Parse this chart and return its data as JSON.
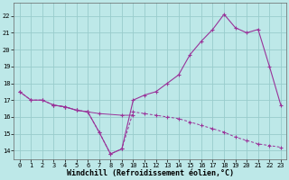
{
  "xlabel": "Windchill (Refroidissement éolien,°C)",
  "xlim": [
    -0.5,
    23.5
  ],
  "ylim": [
    13.5,
    22.8
  ],
  "xticks": [
    0,
    1,
    2,
    3,
    4,
    5,
    6,
    7,
    8,
    9,
    10,
    11,
    12,
    13,
    14,
    15,
    16,
    17,
    18,
    19,
    20,
    21,
    22,
    23
  ],
  "yticks": [
    14,
    15,
    16,
    17,
    18,
    19,
    20,
    21,
    22
  ],
  "background_color": "#bde8e8",
  "grid_color": "#99cccc",
  "line_color": "#993399",
  "curve_upper_x": [
    0,
    1,
    2,
    3,
    4,
    5,
    6,
    7,
    8,
    9,
    10,
    11,
    12,
    13,
    14,
    15,
    16,
    17,
    18,
    19,
    20,
    21,
    22,
    23
  ],
  "curve_upper_y": [
    17.5,
    17.0,
    17.0,
    16.7,
    16.6,
    16.4,
    16.3,
    15.1,
    13.8,
    14.1,
    17.0,
    17.3,
    17.5,
    18.0,
    18.5,
    19.7,
    20.5,
    21.2,
    22.1,
    21.3,
    21.0,
    21.2,
    19.0,
    16.7
  ],
  "curve_lower_x": [
    0,
    1,
    2,
    3,
    4,
    5,
    6,
    7,
    8,
    9,
    10,
    11,
    12,
    13,
    14,
    15,
    16,
    17,
    18,
    19,
    20,
    21,
    22,
    23
  ],
  "curve_lower_y": [
    17.5,
    17.0,
    17.0,
    16.7,
    16.6,
    16.4,
    16.3,
    15.1,
    13.8,
    14.1,
    16.3,
    16.2,
    16.1,
    16.0,
    15.9,
    15.7,
    15.5,
    15.3,
    15.1,
    14.8,
    14.6,
    14.4,
    14.3,
    14.2
  ],
  "curve_mid_x": [
    3,
    4,
    5,
    6,
    7,
    9,
    10
  ],
  "curve_mid_y": [
    16.7,
    16.6,
    16.4,
    16.3,
    16.2,
    16.1,
    16.1
  ],
  "tick_fontsize": 5.0,
  "xlabel_fontsize": 6.0,
  "marker": "+"
}
